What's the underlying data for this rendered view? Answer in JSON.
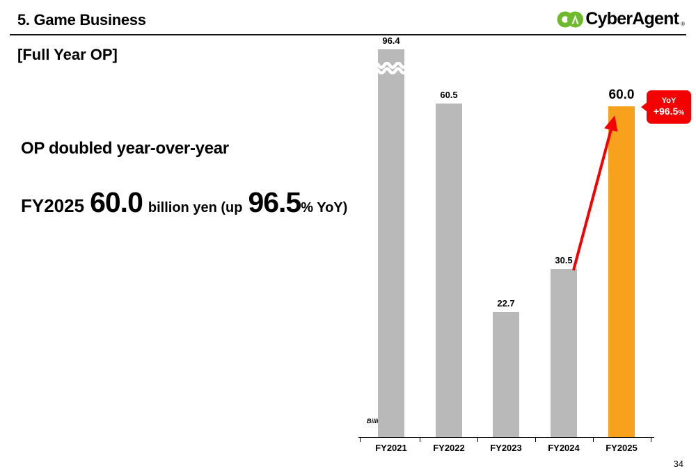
{
  "slide": {
    "title": "5. Game Business",
    "subtitle": "[Full Year OP]",
    "page_number": "34"
  },
  "logo": {
    "name": "CyberAgent",
    "registered": "®",
    "green": "#6fba2c"
  },
  "message": {
    "headline": "OP doubled year-over-year",
    "fy": "FY2025",
    "value": "60.0",
    "mid": "billion yen (up",
    "pct": "96.5",
    "tail": "% YoY)"
  },
  "callout": {
    "label": "YoY",
    "value": "+96.5",
    "percent": "%"
  },
  "colors": {
    "bar_gray": "#b9b9b9",
    "bar_orange": "#f7a11c",
    "accent_red": "#f40000",
    "logo_green": "#6fba2c"
  },
  "chart_data": {
    "type": "bar",
    "title": "Full Year OP",
    "unit_label": "Billion Yen",
    "categories": [
      "FY2021",
      "FY2022",
      "FY2023",
      "FY2024",
      "FY2025"
    ],
    "values": [
      96.4,
      60.5,
      22.7,
      30.5,
      60.0
    ],
    "bar_colors": [
      "#b9b9b9",
      "#b9b9b9",
      "#b9b9b9",
      "#b9b9b9",
      "#f7a11c"
    ],
    "highlight_index": 4,
    "truncated_bar_index": 0,
    "ylabel": "Billion Yen",
    "xlabel": "",
    "grid": false,
    "legend": false,
    "annotation": {
      "label": "YoY +96.5%",
      "from": "FY2024",
      "to": "FY2025"
    }
  }
}
